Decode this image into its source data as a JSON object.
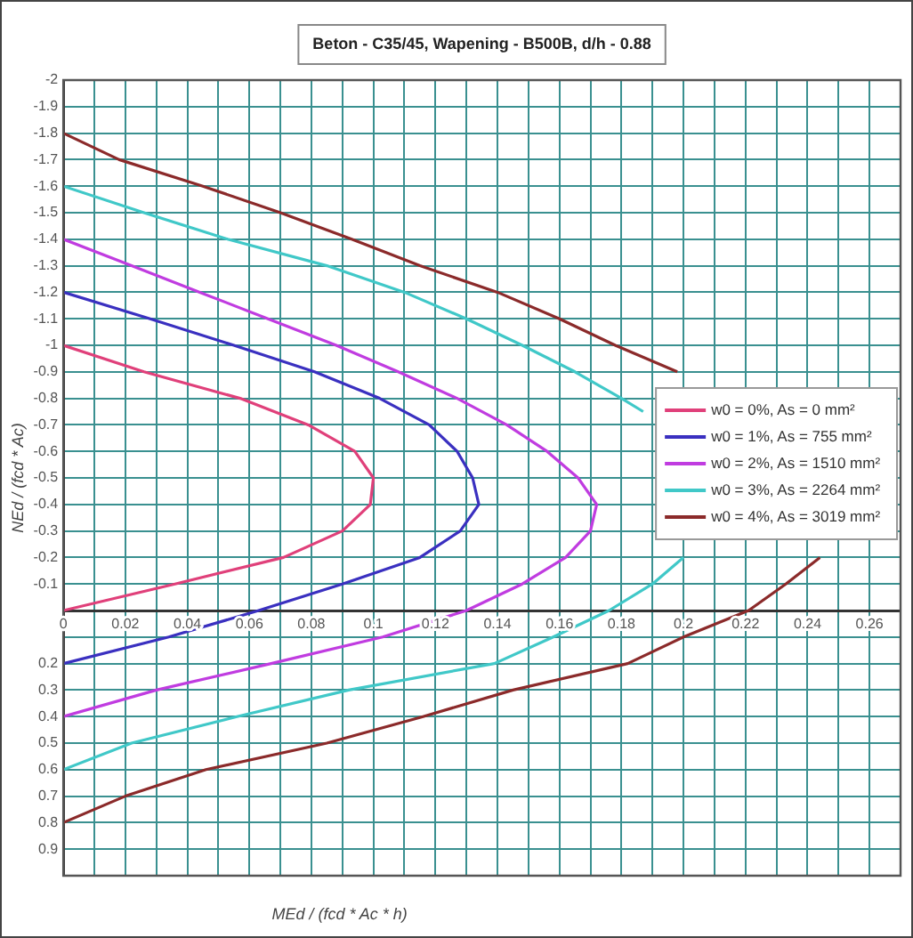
{
  "chart_data": {
    "type": "line",
    "title": "Beton - C35/45, Wapening - B500B, d/h - 0.88",
    "xlabel": "MEd / (fcd * Ac * h)",
    "ylabel": "NEd / (fcd * Ac)",
    "xlim": [
      0,
      0.27
    ],
    "ylim": [
      1,
      -2
    ],
    "xticks": [
      0,
      {
        "value": 0.01,
        "label": null
      },
      0.02,
      {
        "value": 0.03,
        "label": null
      },
      0.04,
      {
        "value": 0.05,
        "label": null
      },
      0.06,
      {
        "value": 0.07,
        "label": null
      },
      0.08,
      {
        "value": 0.09,
        "label": null
      },
      0.1,
      {
        "value": 0.11,
        "label": null
      },
      0.12,
      {
        "value": 0.13,
        "label": null
      },
      0.14,
      {
        "value": 0.15,
        "label": null
      },
      0.16,
      {
        "value": 0.17,
        "label": null
      },
      0.18,
      {
        "value": 0.19,
        "label": null
      },
      0.2,
      {
        "value": 0.21,
        "label": null
      },
      0.22,
      {
        "value": 0.23,
        "label": null
      },
      0.24,
      {
        "value": 0.25,
        "label": null
      },
      0.26
    ],
    "yticks": [
      -2,
      -1.9,
      -1.8,
      -1.7,
      -1.6,
      -1.5,
      -1.4,
      -1.3,
      -1.2,
      -1.1,
      -1,
      -0.9,
      -0.8,
      -0.7,
      -0.6,
      -0.5,
      -0.4,
      -0.3,
      -0.2,
      -0.1,
      {
        "value": 0,
        "label": null
      },
      {
        "value": 0.1,
        "label": null
      },
      0.2,
      0.3,
      0.4,
      0.5,
      0.6,
      0.7,
      0.8,
      0.9,
      {
        "value": 1,
        "label": null
      }
    ],
    "grid": true,
    "legend": "right",
    "marker": "none",
    "line_style": "solid",
    "series": [
      {
        "name": "w0 = 0%, As = 0 mm²",
        "color": "#e0407a",
        "x": [
          0,
          0.026,
          0.057,
          0.079,
          0.094,
          0.1,
          0.099,
          0.09,
          0.071,
          0.036,
          0
        ],
        "values": [
          -1,
          -0.9,
          -0.8,
          -0.7,
          -0.6,
          -0.5,
          -0.4,
          -0.3,
          -0.2,
          -0.1,
          0
        ]
      },
      {
        "name": "w0 = 1%, As = 755 mm²",
        "color": "#3a30c0",
        "x": [
          0,
          0.028,
          0.055,
          0.081,
          0.102,
          0.118,
          0.127,
          0.132,
          0.134,
          0.128,
          0.115,
          0.09,
          0.063,
          0.034,
          0
        ],
        "values": [
          -1.2,
          -1.1,
          -1,
          -0.9,
          -0.8,
          -0.7,
          -0.6,
          -0.5,
          -0.4,
          -0.3,
          -0.2,
          -0.1,
          0,
          0.1,
          0.2
        ]
      },
      {
        "name": "w0 = 2%, As = 1510 mm²",
        "color": "#c03ce0",
        "x": [
          0,
          0.022,
          0.044,
          0.066,
          0.088,
          0.108,
          0.127,
          0.143,
          0.156,
          0.166,
          0.172,
          0.17,
          0.162,
          0.148,
          0.13,
          0.103,
          0.067,
          0.03,
          0
        ],
        "values": [
          -1.4,
          -1.3,
          -1.2,
          -1.1,
          -1,
          -0.9,
          -0.8,
          -0.7,
          -0.6,
          -0.5,
          -0.4,
          -0.3,
          -0.2,
          -0.1,
          0,
          0.1,
          0.2,
          0.3,
          0.4
        ]
      },
      {
        "name": "w0 = 3%, As = 2264 mm²",
        "color": "#40c8c8",
        "x": [
          0,
          0.026,
          0.053,
          0.085,
          0.11,
          0.13,
          0.148,
          0.165,
          0.18,
          0.187,
          0.195,
          0.2,
          0.19,
          0.176,
          0.158,
          0.139,
          0.092,
          0.056,
          0.022,
          0
        ],
        "values": [
          -1.6,
          -1.5,
          -1.4,
          -1.3,
          -1.2,
          -1.1,
          -1,
          -0.9,
          -0.8,
          -0.75,
          null,
          -0.2,
          -0.1,
          0,
          0.1,
          0.2,
          0.3,
          0.4,
          0.5,
          0.6
        ]
      },
      {
        "name": "w0 = 4%, As = 3019 mm²",
        "color": "#8b2a2a",
        "x": [
          0,
          0.018,
          0.045,
          0.07,
          0.093,
          0.115,
          0.14,
          0.16,
          0.178,
          0.198,
          0.22,
          0.244,
          0.233,
          0.221,
          0.2,
          0.182,
          0.145,
          0.116,
          0.085,
          0.046,
          0.02,
          0
        ],
        "values": [
          -1.8,
          -1.7,
          -1.6,
          -1.5,
          -1.4,
          -1.3,
          -1.2,
          -1.1,
          -1,
          -0.9,
          null,
          -0.2,
          -0.1,
          0,
          0.1,
          0.2,
          0.3,
          0.4,
          0.5,
          0.6,
          0.7,
          0.8
        ]
      }
    ]
  }
}
